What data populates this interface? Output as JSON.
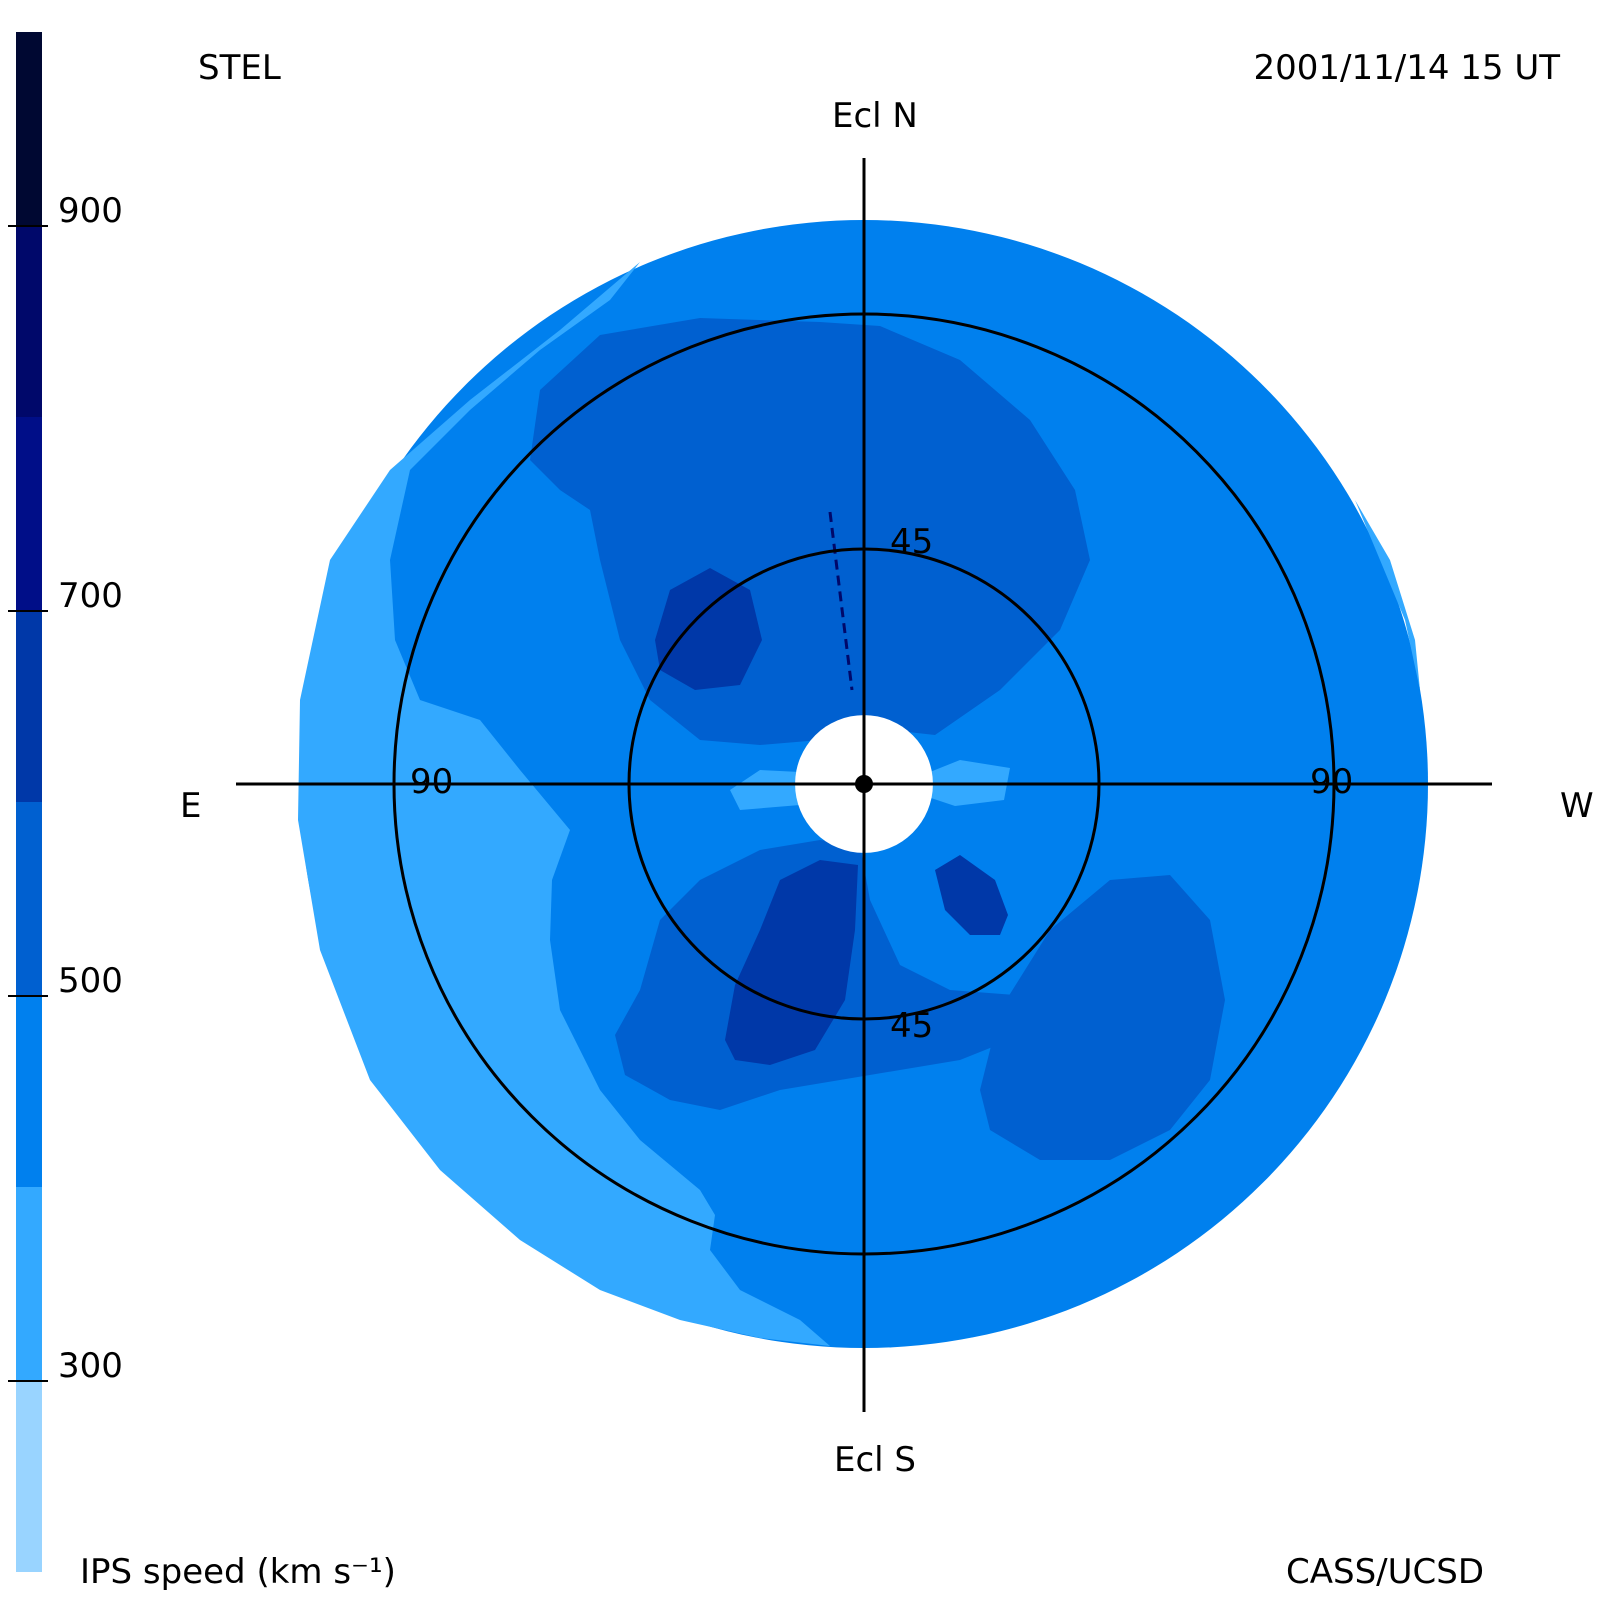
{
  "header": {
    "observatory": "STEL",
    "datetime": "2001/11/14 15 UT"
  },
  "footer": {
    "colorbar_title": "IPS speed (km s⁻¹)",
    "credit": "CASS/UCSD"
  },
  "compass": {
    "north": "Ecl N",
    "south": "Ecl S",
    "east": "E",
    "west": "W"
  },
  "ring_labels": {
    "inner_top": "45",
    "inner_bottom": "45",
    "outer_left": "90",
    "outer_right": "90"
  },
  "colors": {
    "level_200_300": "#99d4ff",
    "level_300_400": "#33a9ff",
    "level_400_500": "#0080ee",
    "level_500_600": "#0060d0",
    "level_600_700": "#0038a8",
    "level_700_800": "#000e88",
    "level_800_900": "#00086a",
    "level_900_1000": "#000832"
  },
  "chart_data": {
    "type": "heatmap",
    "projection": "fisheye sky map, elongation rings",
    "colorbar": {
      "title": "IPS speed (km s⁻¹)",
      "range": [
        200,
        1000
      ],
      "ticks": [
        300,
        500,
        700,
        900
      ],
      "tick_labels": [
        "300",
        "500",
        "700",
        "900"
      ],
      "levels": [
        {
          "from": 200,
          "to": 300,
          "color": "#99d4ff"
        },
        {
          "from": 300,
          "to": 400,
          "color": "#33a9ff"
        },
        {
          "from": 400,
          "to": 500,
          "color": "#0080ee"
        },
        {
          "from": 500,
          "to": 600,
          "color": "#0060d0"
        },
        {
          "from": 600,
          "to": 700,
          "color": "#0038a8"
        },
        {
          "from": 700,
          "to": 800,
          "color": "#000e88"
        },
        {
          "from": 800,
          "to": 900,
          "color": "#00086a"
        },
        {
          "from": 900,
          "to": 1000,
          "color": "#000832"
        }
      ]
    },
    "elongation_rings_deg": [
      45,
      90
    ],
    "map_extent_deg": 108,
    "occulted_radius_deg": 12,
    "regions": [
      {
        "speed_range": [
          300,
          400
        ],
        "location": "outer east and south-west sky",
        "elongation_deg": [
          75,
          108
        ]
      },
      {
        "speed_range": [
          400,
          500
        ],
        "location": "background disk",
        "elongation_deg": [
          0,
          108
        ]
      },
      {
        "speed_range": [
          500,
          600
        ],
        "location": "north lobe, south-west lobe, south-east lobe",
        "elongation_deg": [
          10,
          85
        ]
      },
      {
        "speed_range": [
          600,
          700
        ],
        "location": "north-east spot, south-central lobe, south-west spot",
        "elongation_deg": [
          20,
          55
        ]
      },
      {
        "speed_range": [
          300,
          400
        ],
        "location": "small patches east and west of center",
        "elongation_deg": [
          12,
          32
        ]
      }
    ]
  }
}
